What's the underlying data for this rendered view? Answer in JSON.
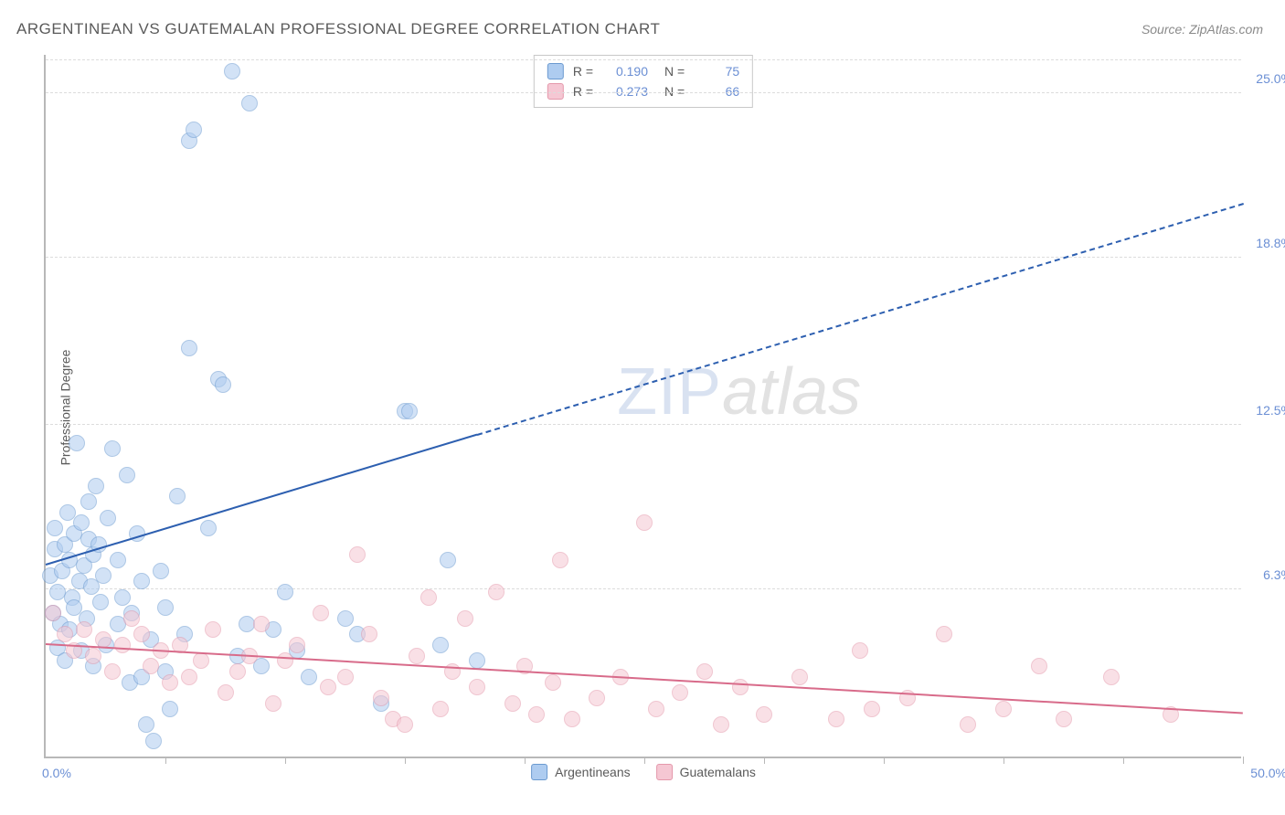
{
  "title": "ARGENTINEAN VS GUATEMALAN PROFESSIONAL DEGREE CORRELATION CHART",
  "source_label": "Source: ZipAtlas.com",
  "y_axis_label": "Professional Degree",
  "watermark": {
    "zip": "ZIP",
    "atlas": "atlas"
  },
  "chart": {
    "type": "scatter",
    "xlim": [
      0,
      50
    ],
    "ylim": [
      0,
      26.5
    ],
    "x_min_label": "0.0%",
    "x_max_label": "50.0%",
    "x_tick_step": 5,
    "y_ticks": [
      {
        "value": 6.3,
        "label": "6.3%"
      },
      {
        "value": 12.5,
        "label": "12.5%"
      },
      {
        "value": 18.8,
        "label": "18.8%"
      },
      {
        "value": 25.0,
        "label": "25.0%"
      }
    ],
    "grid_color": "#dcdcdc",
    "axis_color": "#b8b8b8",
    "tick_label_color": "#6b8fd4",
    "background_color": "#ffffff",
    "series": [
      {
        "name": "Argentineans",
        "fill_color": "#aeccf0",
        "stroke_color": "#6b9ad0",
        "trend_color": "#2d5fb0",
        "marker_radius": 9,
        "marker_opacity": 0.55,
        "R": "0.190",
        "N": "75",
        "trend": {
          "x1": 0,
          "y1": 7.2,
          "x2": 50,
          "y2": 20.8,
          "solid_until_x": 18
        },
        "points": [
          [
            0.2,
            6.8
          ],
          [
            0.3,
            5.4
          ],
          [
            0.4,
            7.8
          ],
          [
            0.4,
            8.6
          ],
          [
            0.5,
            4.1
          ],
          [
            0.5,
            6.2
          ],
          [
            0.6,
            5.0
          ],
          [
            0.7,
            7.0
          ],
          [
            0.8,
            3.6
          ],
          [
            0.8,
            8.0
          ],
          [
            0.9,
            9.2
          ],
          [
            1.0,
            4.8
          ],
          [
            1.0,
            7.4
          ],
          [
            1.1,
            6.0
          ],
          [
            1.2,
            8.4
          ],
          [
            1.2,
            5.6
          ],
          [
            1.3,
            11.8
          ],
          [
            1.4,
            6.6
          ],
          [
            1.5,
            4.0
          ],
          [
            1.5,
            8.8
          ],
          [
            1.6,
            7.2
          ],
          [
            1.7,
            5.2
          ],
          [
            1.8,
            9.6
          ],
          [
            1.8,
            8.2
          ],
          [
            1.9,
            6.4
          ],
          [
            2.0,
            3.4
          ],
          [
            2.0,
            7.6
          ],
          [
            2.1,
            10.2
          ],
          [
            2.2,
            8.0
          ],
          [
            2.3,
            5.8
          ],
          [
            2.4,
            6.8
          ],
          [
            2.5,
            4.2
          ],
          [
            2.6,
            9.0
          ],
          [
            2.8,
            11.6
          ],
          [
            3.0,
            5.0
          ],
          [
            3.0,
            7.4
          ],
          [
            3.2,
            6.0
          ],
          [
            3.4,
            10.6
          ],
          [
            3.5,
            2.8
          ],
          [
            3.6,
            5.4
          ],
          [
            3.8,
            8.4
          ],
          [
            4.0,
            3.0
          ],
          [
            4.0,
            6.6
          ],
          [
            4.2,
            1.2
          ],
          [
            4.4,
            4.4
          ],
          [
            4.5,
            0.6
          ],
          [
            4.8,
            7.0
          ],
          [
            5.0,
            5.6
          ],
          [
            5.0,
            3.2
          ],
          [
            5.2,
            1.8
          ],
          [
            5.5,
            9.8
          ],
          [
            5.8,
            4.6
          ],
          [
            6.0,
            15.4
          ],
          [
            6.0,
            23.2
          ],
          [
            6.2,
            23.6
          ],
          [
            6.8,
            8.6
          ],
          [
            7.2,
            14.2
          ],
          [
            7.4,
            14.0
          ],
          [
            7.8,
            25.8
          ],
          [
            8.0,
            3.8
          ],
          [
            8.4,
            5.0
          ],
          [
            8.5,
            24.6
          ],
          [
            9.0,
            3.4
          ],
          [
            9.5,
            4.8
          ],
          [
            10.0,
            6.2
          ],
          [
            10.5,
            4.0
          ],
          [
            11.0,
            3.0
          ],
          [
            12.5,
            5.2
          ],
          [
            13.0,
            4.6
          ],
          [
            14.0,
            2.0
          ],
          [
            15.0,
            13.0
          ],
          [
            15.2,
            13.0
          ],
          [
            16.5,
            4.2
          ],
          [
            16.8,
            7.4
          ],
          [
            18.0,
            3.6
          ]
        ]
      },
      {
        "name": "Guatemalans",
        "fill_color": "#f5c7d3",
        "stroke_color": "#e498ab",
        "trend_color": "#d86b8a",
        "marker_radius": 9,
        "marker_opacity": 0.55,
        "R": "-0.273",
        "N": "66",
        "trend": {
          "x1": 0,
          "y1": 4.2,
          "x2": 50,
          "y2": 1.6,
          "solid_until_x": 50
        },
        "points": [
          [
            0.3,
            5.4
          ],
          [
            0.8,
            4.6
          ],
          [
            1.2,
            4.0
          ],
          [
            1.6,
            4.8
          ],
          [
            2.0,
            3.8
          ],
          [
            2.4,
            4.4
          ],
          [
            2.8,
            3.2
          ],
          [
            3.2,
            4.2
          ],
          [
            3.6,
            5.2
          ],
          [
            4.0,
            4.6
          ],
          [
            4.4,
            3.4
          ],
          [
            4.8,
            4.0
          ],
          [
            5.2,
            2.8
          ],
          [
            5.6,
            4.2
          ],
          [
            6.0,
            3.0
          ],
          [
            6.5,
            3.6
          ],
          [
            7.0,
            4.8
          ],
          [
            7.5,
            2.4
          ],
          [
            8.0,
            3.2
          ],
          [
            8.5,
            3.8
          ],
          [
            9.0,
            5.0
          ],
          [
            9.5,
            2.0
          ],
          [
            10.0,
            3.6
          ],
          [
            10.5,
            4.2
          ],
          [
            11.5,
            5.4
          ],
          [
            11.8,
            2.6
          ],
          [
            12.5,
            3.0
          ],
          [
            13.0,
            7.6
          ],
          [
            13.5,
            4.6
          ],
          [
            14.0,
            2.2
          ],
          [
            14.5,
            1.4
          ],
          [
            15.0,
            1.2
          ],
          [
            15.5,
            3.8
          ],
          [
            16.0,
            6.0
          ],
          [
            16.5,
            1.8
          ],
          [
            17.0,
            3.2
          ],
          [
            17.5,
            5.2
          ],
          [
            18.0,
            2.6
          ],
          [
            18.8,
            6.2
          ],
          [
            19.5,
            2.0
          ],
          [
            20.0,
            3.4
          ],
          [
            20.5,
            1.6
          ],
          [
            21.2,
            2.8
          ],
          [
            21.5,
            7.4
          ],
          [
            22.0,
            1.4
          ],
          [
            23.0,
            2.2
          ],
          [
            24.0,
            3.0
          ],
          [
            25.0,
            8.8
          ],
          [
            25.5,
            1.8
          ],
          [
            26.5,
            2.4
          ],
          [
            27.5,
            3.2
          ],
          [
            28.2,
            1.2
          ],
          [
            29.0,
            2.6
          ],
          [
            30.0,
            1.6
          ],
          [
            31.5,
            3.0
          ],
          [
            33.0,
            1.4
          ],
          [
            34.0,
            4.0
          ],
          [
            34.5,
            1.8
          ],
          [
            36.0,
            2.2
          ],
          [
            37.5,
            4.6
          ],
          [
            38.5,
            1.2
          ],
          [
            40.0,
            1.8
          ],
          [
            41.5,
            3.4
          ],
          [
            42.5,
            1.4
          ],
          [
            44.5,
            3.0
          ],
          [
            47.0,
            1.6
          ]
        ]
      }
    ]
  },
  "legend_top": {
    "r_label": "R =",
    "n_label": "N ="
  },
  "legend_bottom_labels": [
    "Argentineans",
    "Guatemalans"
  ]
}
